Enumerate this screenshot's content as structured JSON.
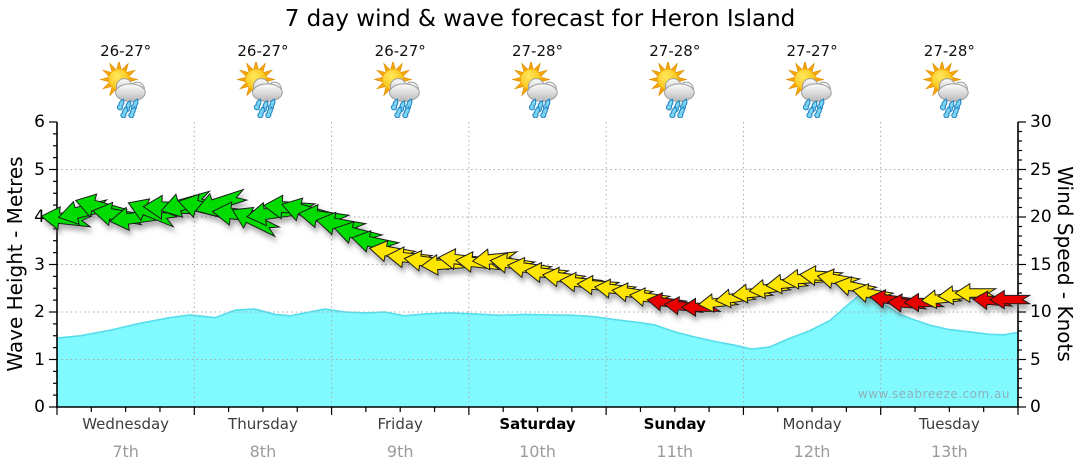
{
  "title": "7 day wind & wave forecast for Heron Island",
  "watermark": "www.seabreeze.com.au",
  "axes": {
    "left": {
      "label": "Wave Height - Metres",
      "ticks": [
        "6",
        "5",
        "4",
        "3",
        "2",
        "1",
        "0"
      ]
    },
    "right": {
      "label": "Wind Speed - Knots",
      "ticks": [
        "30",
        "25",
        "20",
        "15",
        "10",
        "5",
        "0"
      ]
    }
  },
  "days": [
    {
      "name": "Wednesday",
      "date": "7th",
      "temp": "26-27°",
      "bold": false,
      "icon": "sun-cloud-rain"
    },
    {
      "name": "Thursday",
      "date": "8th",
      "temp": "26-27°",
      "bold": false,
      "icon": "sun-cloud-rain"
    },
    {
      "name": "Friday",
      "date": "9th",
      "temp": "26-27°",
      "bold": false,
      "icon": "sun-cloud-rain"
    },
    {
      "name": "Saturday",
      "date": "10th",
      "temp": "27-28°",
      "bold": true,
      "icon": "sun-cloud-rain"
    },
    {
      "name": "Sunday",
      "date": "11th",
      "temp": "27-28°",
      "bold": true,
      "icon": "sun-cloud-rain"
    },
    {
      "name": "Monday",
      "date": "12th",
      "temp": "27-27°",
      "bold": false,
      "icon": "sun-cloud-rain"
    },
    {
      "name": "Tuesday",
      "date": "13th",
      "temp": "27-28°",
      "bold": false,
      "icon": "sun-cloud-rain"
    }
  ],
  "colors": {
    "wave_fill": "#80F9FF",
    "wave_edge": "#55DDEB",
    "green": "#00DC00",
    "yellow": "#FFE600",
    "red": "#E80000",
    "grid": "#ababab",
    "axis": "#000000"
  },
  "chart_data": {
    "type": "area",
    "title": "7 day wind & wave forecast for Heron Island",
    "x_axis": {
      "unit": "days",
      "span_days": 7,
      "categories": [
        "Wednesday 7th",
        "Thursday 8th",
        "Friday 9th",
        "Saturday 10th",
        "Sunday 11th",
        "Monday 12th",
        "Tuesday 13th"
      ]
    },
    "y_left": {
      "label": "Wave Height - Metres",
      "range": [
        0,
        6
      ],
      "gridlines": [
        1,
        2,
        3,
        4,
        5
      ]
    },
    "y_right": {
      "label": "Wind Speed - Knots",
      "range": [
        0,
        30
      ],
      "gridlines": [
        5,
        10,
        15,
        20,
        25
      ]
    },
    "legend": "none",
    "series": [
      {
        "name": "Wave Height",
        "type": "area",
        "unit": "m",
        "points": [
          [
            0,
            1.45
          ],
          [
            0.17,
            1.5
          ],
          [
            0.39,
            1.62
          ],
          [
            0.6,
            1.76
          ],
          [
            0.82,
            1.88
          ],
          [
            0.97,
            1.94
          ],
          [
            1.15,
            1.88
          ],
          [
            1.3,
            2.04
          ],
          [
            1.44,
            2.06
          ],
          [
            1.59,
            1.95
          ],
          [
            1.7,
            1.92
          ],
          [
            1.84,
            2.0
          ],
          [
            1.95,
            2.06
          ],
          [
            2.1,
            2.0
          ],
          [
            2.24,
            1.98
          ],
          [
            2.39,
            2.0
          ],
          [
            2.53,
            1.92
          ],
          [
            2.68,
            1.96
          ],
          [
            2.86,
            1.98
          ],
          [
            3.04,
            1.96
          ],
          [
            3.23,
            1.93
          ],
          [
            3.41,
            1.95
          ],
          [
            3.59,
            1.94
          ],
          [
            3.77,
            1.93
          ],
          [
            3.92,
            1.9
          ],
          [
            4.06,
            1.84
          ],
          [
            4.21,
            1.79
          ],
          [
            4.35,
            1.73
          ],
          [
            4.5,
            1.58
          ],
          [
            4.65,
            1.47
          ],
          [
            4.79,
            1.38
          ],
          [
            4.94,
            1.3
          ],
          [
            5.06,
            1.22
          ],
          [
            5.19,
            1.26
          ],
          [
            5.34,
            1.45
          ],
          [
            5.48,
            1.6
          ],
          [
            5.63,
            1.82
          ],
          [
            5.74,
            2.1
          ],
          [
            5.83,
            2.32
          ],
          [
            5.94,
            2.28
          ],
          [
            6.03,
            2.15
          ],
          [
            6.14,
            1.95
          ],
          [
            6.25,
            1.83
          ],
          [
            6.36,
            1.72
          ],
          [
            6.5,
            1.63
          ],
          [
            6.65,
            1.58
          ],
          [
            6.79,
            1.53
          ],
          [
            6.9,
            1.52
          ],
          [
            7,
            1.57
          ]
        ]
      },
      {
        "name": "Wind Speed",
        "type": "wind-arrows",
        "unit": "knots",
        "per_day": 8,
        "direction": "easterly (arrows point left)",
        "arrows": [
          [
            19.8,
            "green",
            6
          ],
          [
            20.6,
            "green",
            -14
          ],
          [
            21.0,
            "green",
            16
          ],
          [
            20.2,
            "green",
            10
          ],
          [
            19.9,
            "green",
            -8
          ],
          [
            20.5,
            "green",
            22
          ],
          [
            21.0,
            "green",
            2
          ],
          [
            21.4,
            "green",
            -16
          ],
          [
            21.0,
            "green",
            14
          ],
          [
            21.5,
            "green",
            -18
          ],
          [
            20.3,
            "green",
            6
          ],
          [
            19.6,
            "green",
            26
          ],
          [
            20.4,
            "green",
            -8
          ],
          [
            21.0,
            "green",
            4
          ],
          [
            20.6,
            "green",
            16
          ],
          [
            20.0,
            "green",
            8
          ],
          [
            19.2,
            "green",
            10
          ],
          [
            18.2,
            "green",
            14
          ],
          [
            17.3,
            "green",
            12
          ],
          [
            16.3,
            "yellow",
            10
          ],
          [
            15.7,
            "yellow",
            6
          ],
          [
            15.3,
            "yellow",
            8
          ],
          [
            15.0,
            "yellow",
            -4
          ],
          [
            15.5,
            "yellow",
            6
          ],
          [
            15.2,
            "yellow",
            6
          ],
          [
            15.6,
            "yellow",
            -6
          ],
          [
            15.1,
            "yellow",
            8
          ],
          [
            14.6,
            "yellow",
            8
          ],
          [
            14.1,
            "yellow",
            6
          ],
          [
            13.6,
            "yellow",
            8
          ],
          [
            13.1,
            "yellow",
            6
          ],
          [
            12.8,
            "yellow",
            4
          ],
          [
            12.4,
            "yellow",
            6
          ],
          [
            12.0,
            "yellow",
            8
          ],
          [
            11.5,
            "yellow",
            8
          ],
          [
            11.0,
            "red",
            8
          ],
          [
            10.6,
            "red",
            6
          ],
          [
            10.5,
            "red",
            0
          ],
          [
            11.0,
            "yellow",
            -6
          ],
          [
            11.5,
            "yellow",
            -8
          ],
          [
            12.0,
            "yellow",
            -6
          ],
          [
            12.5,
            "yellow",
            -8
          ],
          [
            13.0,
            "yellow",
            -6
          ],
          [
            13.5,
            "yellow",
            -4
          ],
          [
            13.8,
            "yellow",
            4
          ],
          [
            13.4,
            "yellow",
            10
          ],
          [
            12.6,
            "yellow",
            12
          ],
          [
            11.9,
            "yellow",
            10
          ],
          [
            11.3,
            "red",
            8
          ],
          [
            10.9,
            "red",
            4
          ],
          [
            11.0,
            "red",
            0
          ],
          [
            11.4,
            "yellow",
            -6
          ],
          [
            11.8,
            "yellow",
            -4
          ],
          [
            12.0,
            "yellow",
            0
          ],
          [
            11.2,
            "red",
            4
          ],
          [
            11.3,
            "red",
            0
          ]
        ]
      }
    ]
  }
}
